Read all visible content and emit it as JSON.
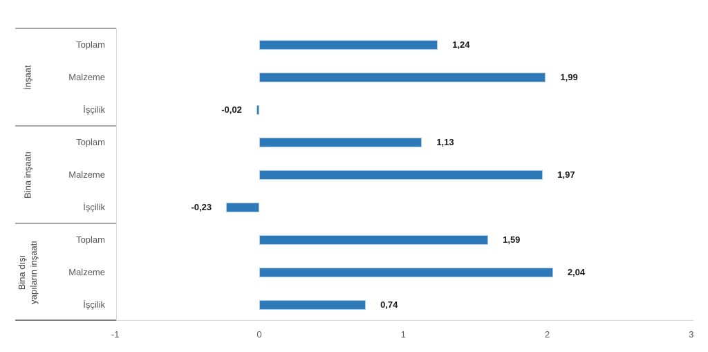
{
  "chart_data": {
    "type": "bar",
    "orientation": "horizontal",
    "title": "",
    "xlabel": "",
    "ylabel": "",
    "grid": false,
    "legend": false,
    "bar_color": "#2e79b8",
    "bar_border_color": "#aecbe8",
    "value_format": "comma-decimal",
    "groups": [
      {
        "label": "İnşaat",
        "label_lines": [
          "İnşaat"
        ],
        "rows": [
          {
            "category": "Toplam",
            "value": 1.24,
            "display": "1,24"
          },
          {
            "category": "Malzeme",
            "value": 1.99,
            "display": "1,99"
          },
          {
            "category": "İşçilik",
            "value": -0.02,
            "display": "-0,02"
          }
        ]
      },
      {
        "label": "Bina inşaatı",
        "label_lines": [
          "Bina inşaatı"
        ],
        "rows": [
          {
            "category": "Toplam",
            "value": 1.13,
            "display": "1,13"
          },
          {
            "category": "Malzeme",
            "value": 1.97,
            "display": "1,97"
          },
          {
            "category": "İşçilik",
            "value": -0.23,
            "display": "-0,23"
          }
        ]
      },
      {
        "label": "Bina dışı yapıların inşaatı",
        "label_lines": [
          "Bina dışı",
          "yapıların inşaatı"
        ],
        "rows": [
          {
            "category": "Toplam",
            "value": 1.59,
            "display": "1,59"
          },
          {
            "category": "Malzeme",
            "value": 2.04,
            "display": "2,04"
          },
          {
            "category": "İşçilik",
            "value": 0.74,
            "display": "0,74"
          }
        ]
      }
    ],
    "x_axis": {
      "min": -1,
      "max": 3,
      "tick_values": [
        -1,
        0,
        1,
        2,
        3
      ],
      "tick_labels": [
        "-1",
        "0",
        "1",
        "2",
        "3"
      ]
    }
  }
}
